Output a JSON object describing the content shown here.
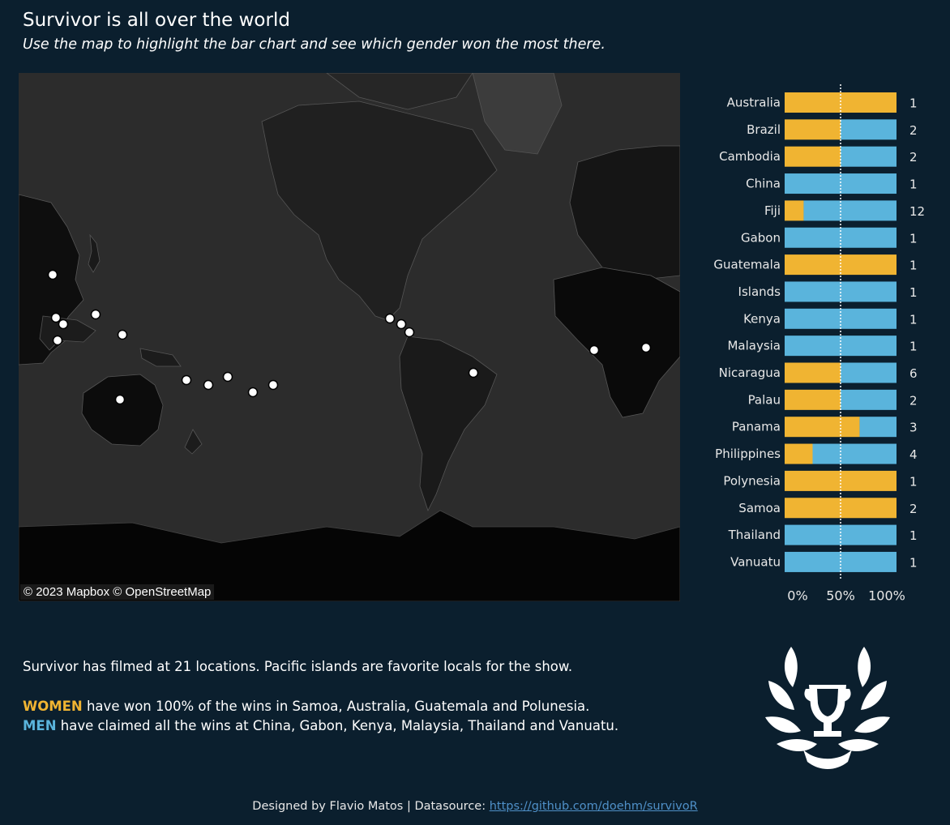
{
  "header": {
    "title": "Survivor is all over the world",
    "subtitle": "Use the map to highlight the bar chart and see which gender won the most there."
  },
  "map": {
    "attribution": "© 2023 Mapbox © OpenStreetMap"
  },
  "colors": {
    "women": "#f0b432",
    "men": "#5ab4dc",
    "background": "#0b1f2e"
  },
  "chart_data": {
    "type": "bar",
    "orientation": "horizontal",
    "stacked": "100%",
    "categories": [
      "Australia",
      "Brazil",
      "Cambodia",
      "China",
      "Fiji",
      "Gabon",
      "Guatemala",
      "Islands",
      "Kenya",
      "Malaysia",
      "Nicaragua",
      "Palau",
      "Panama",
      "Philippines",
      "Polynesia",
      "Samoa",
      "Thailand",
      "Vanuatu"
    ],
    "series": [
      {
        "name": "WOMEN",
        "values": [
          100,
          50,
          50,
          0,
          17,
          0,
          100,
          0,
          0,
          0,
          50,
          50,
          67,
          25,
          100,
          100,
          0,
          0
        ]
      },
      {
        "name": "MEN",
        "values": [
          0,
          50,
          50,
          100,
          83,
          100,
          0,
          100,
          100,
          100,
          50,
          50,
          33,
          75,
          0,
          0,
          100,
          100
        ]
      }
    ],
    "totals": [
      1,
      2,
      2,
      1,
      12,
      1,
      1,
      1,
      1,
      1,
      6,
      2,
      3,
      4,
      1,
      2,
      1,
      1
    ],
    "x_ticks": [
      "0%",
      "50%",
      "100%"
    ],
    "xlim": [
      0,
      100
    ],
    "reference_line": 50,
    "title": "",
    "xlabel": "",
    "ylabel": ""
  },
  "info": {
    "line1": "Survivor has filmed at 21 locations. Pacific islands are favorite locals for the show.",
    "women_word": "WOMEN",
    "women_text": " have won 100% of the wins in  Samoa, Australia, Guatemala and Polunesia.",
    "men_word": "MEN",
    "men_text": " have claimed all the wins at China, Gabon, Kenya, Malaysia, Thailand and Vanuatu."
  },
  "footer": {
    "designed": "Designed by Flavio Matos  |  Datasource: ",
    "link": "https://github.com/doehm/survivoR"
  },
  "logo": {
    "icon": "trophy-laurel-icon"
  }
}
